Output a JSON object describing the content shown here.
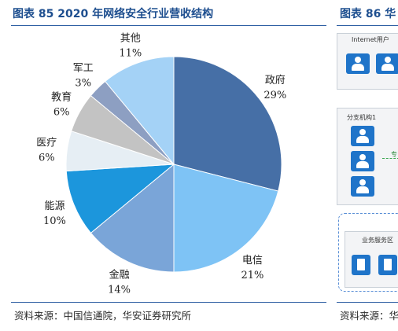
{
  "figure85": {
    "title": "图表 85 2020 年网络安全行业营收结构",
    "source": "资料来源：中国信通院，华安证券研究所"
  },
  "figure86": {
    "title": "图表 86 华",
    "source": "资料来源：华",
    "boxes": {
      "internet_label": "Internet用户",
      "branch_label": "分支机构1",
      "service_label": "业务服务区",
      "link_text": "专"
    },
    "icons": [
      "user-icon",
      "server-icon"
    ]
  },
  "chart_data": {
    "type": "pie",
    "title": "2020 年网络安全行业营收结构",
    "categories": [
      "政府",
      "电信",
      "金融",
      "能源",
      "医疗",
      "教育",
      "军工",
      "其他"
    ],
    "values": [
      29,
      21,
      14,
      10,
      6,
      6,
      3,
      11
    ],
    "value_labels": [
      "29%",
      "21%",
      "14%",
      "10%",
      "6%",
      "6%",
      "3%",
      "11%"
    ],
    "unit": "%",
    "colors": [
      "#466fa6",
      "#7ec3f5",
      "#7aa5d8",
      "#1c96dc",
      "#e6eef4",
      "#c3c3c3",
      "#8d9fc2",
      "#a4d2f6"
    ],
    "start_angle_deg": 0,
    "direction": "clockwise",
    "legend": "none, labels outside slices"
  }
}
